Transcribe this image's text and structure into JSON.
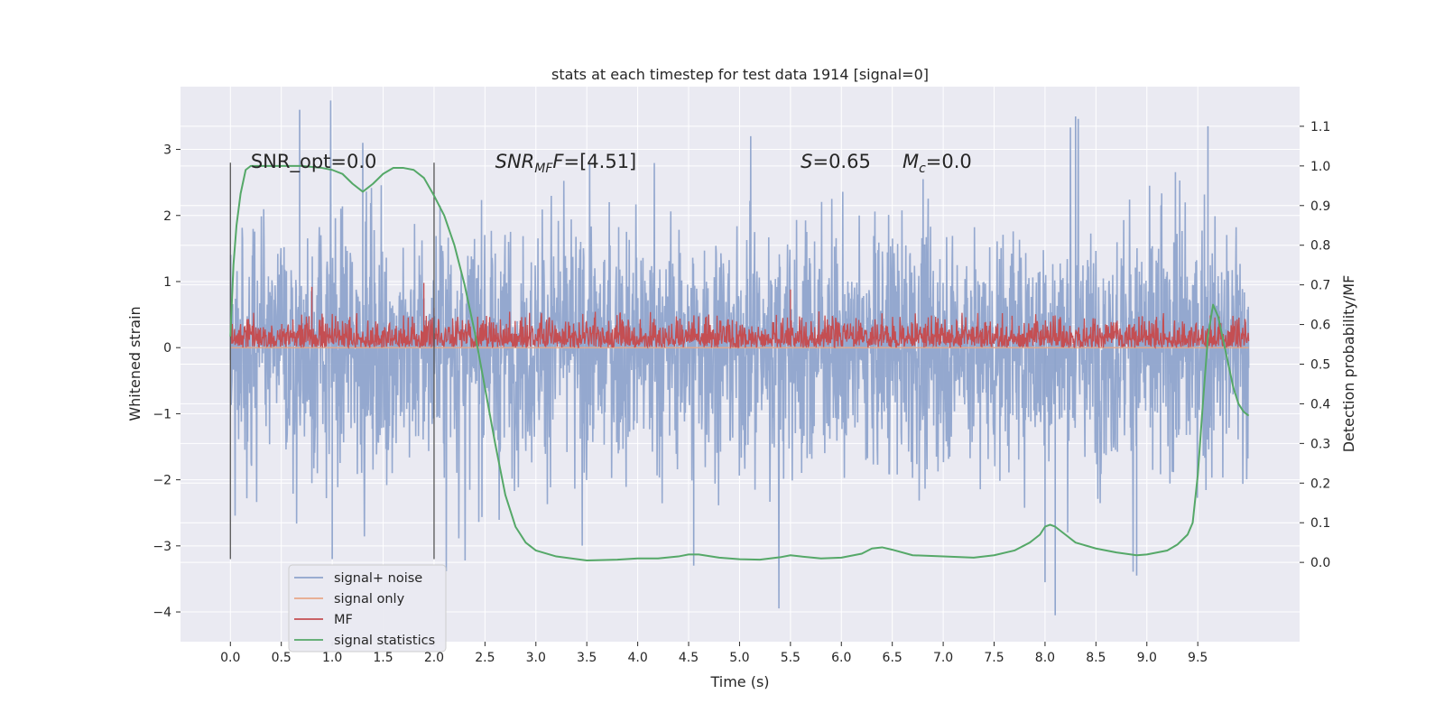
{
  "chart_data": {
    "type": "line",
    "title": "stats at each timestep for test data 1914 [signal=0]",
    "xlabel": "Time (s)",
    "ylabel": "Whitened strain",
    "y2label": "Detection probability/MF",
    "xlim": [
      -0.49,
      10.5
    ],
    "ylim": [
      -4.45,
      3.95
    ],
    "y2lim": [
      -0.2,
      1.2
    ],
    "x_ticks": [
      "0.0",
      "0.5",
      "1.0",
      "1.5",
      "2.0",
      "2.5",
      "3.0",
      "3.5",
      "4.0",
      "4.5",
      "5.0",
      "5.5",
      "6.0",
      "6.5",
      "7.0",
      "7.5",
      "8.0",
      "8.5",
      "9.0",
      "9.5"
    ],
    "y_ticks": [
      "3",
      "2",
      "1",
      "0",
      "−1",
      "−2",
      "−3",
      "−4"
    ],
    "y2_ticks": [
      "1.1",
      "1.0",
      "0.9",
      "0.8",
      "0.7",
      "0.6",
      "0.5",
      "0.4",
      "0.3",
      "0.2",
      "0.1",
      "0.0"
    ],
    "grid": true,
    "legend_position": "lower-left",
    "colors": {
      "background": "#EAEAF2",
      "grid": "#FFFFFF",
      "signal_noise": "#8FA4CC",
      "signal_only": "#E8A888",
      "mf": "#C44E52",
      "signal_statistics": "#55A868",
      "markers": "#555555"
    },
    "series": [
      {
        "name": "signal+ noise",
        "axis": "left",
        "x_range": [
          0.0,
          10.0
        ],
        "typical_envelope": [
          -1.6,
          1.6
        ],
        "peaks": [
          [
            0.68,
            3.6
          ],
          [
            1.3,
            3.1
          ],
          [
            8.3,
            3.5
          ],
          [
            9.6,
            3.35
          ],
          [
            8.1,
            -4.05
          ],
          [
            8.0,
            -3.55
          ],
          [
            4.55,
            -3.3
          ],
          [
            1.0,
            -3.2
          ],
          [
            8.9,
            -3.45
          ]
        ]
      },
      {
        "name": "signal only",
        "axis": "left",
        "x_range": [
          0.0,
          10.0
        ],
        "value": 0.0
      },
      {
        "name": "MF",
        "axis": "left",
        "x_range": [
          0.0,
          10.0
        ],
        "typical_envelope": [
          0.0,
          0.55
        ],
        "peaks": [
          [
            0.8,
            0.92
          ],
          [
            1.9,
            0.98
          ],
          [
            2.0,
            0.6
          ],
          [
            5.5,
            0.88
          ]
        ]
      },
      {
        "name": "signal statistics",
        "axis": "right",
        "x": [
          0.0,
          0.03,
          0.06,
          0.1,
          0.15,
          0.2,
          0.3,
          0.5,
          0.7,
          0.9,
          1.0,
          1.1,
          1.2,
          1.3,
          1.4,
          1.5,
          1.6,
          1.7,
          1.8,
          1.9,
          2.0,
          2.1,
          2.2,
          2.3,
          2.4,
          2.5,
          2.6,
          2.7,
          2.8,
          2.9,
          3.0,
          3.2,
          3.5,
          3.8,
          4.0,
          4.2,
          4.4,
          4.5,
          4.6,
          4.8,
          5.0,
          5.2,
          5.4,
          5.5,
          5.6,
          5.8,
          6.0,
          6.2,
          6.3,
          6.4,
          6.5,
          6.7,
          7.0,
          7.3,
          7.5,
          7.7,
          7.85,
          7.95,
          8.0,
          8.05,
          8.1,
          8.2,
          8.3,
          8.5,
          8.7,
          8.9,
          9.0,
          9.2,
          9.3,
          9.4,
          9.45,
          9.5,
          9.55,
          9.6,
          9.65,
          9.7,
          9.75,
          9.8,
          9.85,
          9.9,
          9.95,
          10.0
        ],
        "values": [
          0.57,
          0.75,
          0.85,
          0.93,
          0.99,
          1.0,
          1.0,
          1.0,
          1.0,
          0.995,
          0.99,
          0.98,
          0.955,
          0.935,
          0.955,
          0.98,
          0.995,
          0.995,
          0.99,
          0.97,
          0.925,
          0.875,
          0.8,
          0.7,
          0.58,
          0.44,
          0.3,
          0.17,
          0.09,
          0.05,
          0.03,
          0.015,
          0.005,
          0.007,
          0.01,
          0.01,
          0.015,
          0.02,
          0.02,
          0.012,
          0.008,
          0.007,
          0.013,
          0.018,
          0.015,
          0.01,
          0.012,
          0.022,
          0.035,
          0.038,
          0.032,
          0.018,
          0.015,
          0.012,
          0.018,
          0.03,
          0.05,
          0.07,
          0.09,
          0.095,
          0.09,
          0.07,
          0.05,
          0.035,
          0.025,
          0.018,
          0.02,
          0.03,
          0.045,
          0.07,
          0.1,
          0.22,
          0.4,
          0.57,
          0.65,
          0.62,
          0.56,
          0.5,
          0.44,
          0.4,
          0.38,
          0.37
        ]
      }
    ],
    "markers": [
      {
        "x": 0.0,
        "y_from": -3.2,
        "y_to": 2.8
      },
      {
        "x": 2.0,
        "y_from": -3.2,
        "y_to": 2.8
      }
    ],
    "annotations": [
      {
        "x": 0.2,
        "y": 2.72,
        "text": "SNR_opt=0.0",
        "italic": false
      },
      {
        "x": 2.6,
        "y": 2.72,
        "text": "SNR",
        "sub": "MF",
        "after": "F=[4.51]",
        "italic": true
      },
      {
        "x": 5.6,
        "y": 2.72,
        "text": "S",
        "after": "=0.65",
        "italic": true
      },
      {
        "x": 6.6,
        "y": 2.72,
        "text": "M",
        "sub": "c",
        "after": "=0.0",
        "italic": true
      }
    ]
  }
}
